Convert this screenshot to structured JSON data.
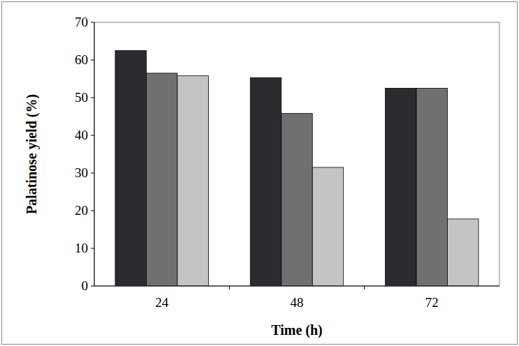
{
  "chart_data": {
    "type": "bar",
    "x_label": "Time (h)",
    "y_label": "Palatinose yield (%)",
    "categories": [
      "24",
      "48",
      "72"
    ],
    "series": [
      {
        "color": "#2b2b30",
        "values": [
          62.5,
          55.3,
          52.5
        ]
      },
      {
        "color": "#707072",
        "values": [
          56.5,
          45.8,
          52.5
        ]
      },
      {
        "color": "#c4c4c4",
        "values": [
          55.8,
          31.5,
          17.8
        ]
      }
    ],
    "ylim": [
      0,
      70
    ],
    "yticks": [
      0,
      10,
      20,
      30,
      40,
      50,
      60,
      70
    ],
    "grid": false
  }
}
